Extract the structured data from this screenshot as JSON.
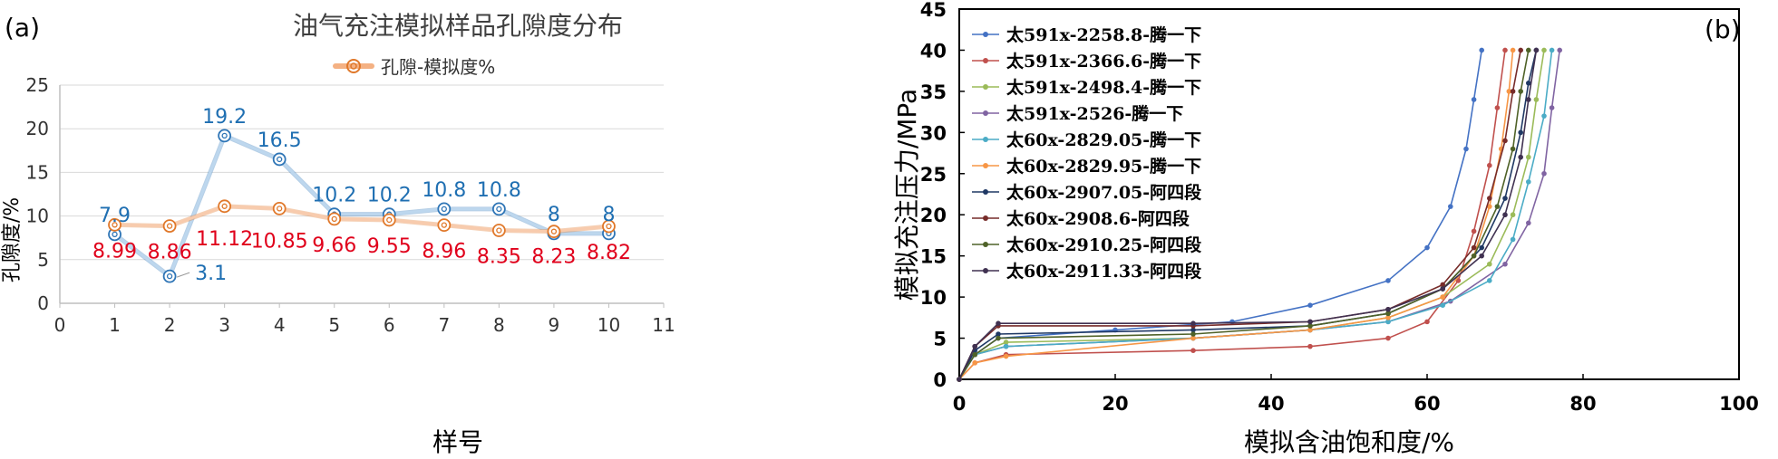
{
  "chart_data": [
    {
      "type": "line",
      "panel_label": "(a)",
      "title": "油气充注模拟样品孔隙度分布",
      "xlabel": "样号",
      "ylabel": "孔隙度/%",
      "xlim": [
        0,
        11
      ],
      "ylim": [
        0,
        25
      ],
      "xticks": [
        "0",
        "1",
        "2",
        "3",
        "4",
        "5",
        "6",
        "7",
        "8",
        "9",
        "10",
        "11"
      ],
      "yticks": [
        "0",
        "5",
        "10",
        "15",
        "20",
        "25"
      ],
      "grid": "horizontal",
      "legend_position": "top-center",
      "series": [
        {
          "name": "",
          "color": "#2e75b6",
          "x": [
            1,
            2,
            3,
            4,
            5,
            6,
            7,
            8,
            9,
            10
          ],
          "values": [
            7.9,
            3.1,
            19.2,
            16.5,
            10.2,
            10.2,
            10.8,
            10.8,
            8,
            8
          ],
          "labels": [
            "7.9",
            "3.1",
            "19.2",
            "16.5",
            "10.2",
            "10.2",
            "10.8",
            "10.8",
            "8",
            "8"
          ]
        },
        {
          "name": "孔隙-模拟度%",
          "color": "#e0782a",
          "x": [
            1,
            2,
            3,
            4,
            5,
            6,
            7,
            8,
            9,
            10
          ],
          "values": [
            8.99,
            8.86,
            11.12,
            10.85,
            9.66,
            9.55,
            8.96,
            8.35,
            8.23,
            8.82
          ],
          "labels": [
            "8.99",
            "8.86",
            "11.12",
            "10.85",
            "9.66",
            "9.55",
            "8.96",
            "8.35",
            "8.23",
            "8.82"
          ]
        }
      ]
    },
    {
      "type": "line",
      "panel_label": "(b)",
      "xlabel": "模拟含油饱和度/%",
      "ylabel": "模拟充注压力/MPa",
      "xlim": [
        0,
        100
      ],
      "ylim": [
        0,
        45
      ],
      "xticks": [
        "0",
        "20",
        "40",
        "60",
        "80",
        "100"
      ],
      "yticks": [
        "0",
        "5",
        "10",
        "15",
        "20",
        "25",
        "30",
        "35",
        "40",
        "45"
      ],
      "grid": "none",
      "legend_position": "top-left",
      "series": [
        {
          "name": "太591x-2258.8-腾一下",
          "color": "#4472c4",
          "plateau": 6.0,
          "end": 67,
          "points": [
            [
              0,
              0
            ],
            [
              2,
              3
            ],
            [
              5,
              5
            ],
            [
              20,
              6
            ],
            [
              35,
              7
            ],
            [
              45,
              9
            ],
            [
              55,
              12
            ],
            [
              60,
              16
            ],
            [
              63,
              21
            ],
            [
              65,
              28
            ],
            [
              66,
              34
            ],
            [
              67,
              40
            ]
          ]
        },
        {
          "name": "太591x-2366.6-腾一下",
          "color": "#c0504d",
          "plateau": 3.2,
          "end": 70,
          "points": [
            [
              0,
              0
            ],
            [
              2,
              2
            ],
            [
              6,
              3
            ],
            [
              30,
              3.5
            ],
            [
              45,
              4
            ],
            [
              55,
              5
            ],
            [
              60,
              7
            ],
            [
              64,
              12
            ],
            [
              66,
              18
            ],
            [
              68,
              26
            ],
            [
              69,
              33
            ],
            [
              70,
              40
            ]
          ]
        },
        {
          "name": "太591x-2498.4-腾一下",
          "color": "#9bbb59",
          "plateau": 4.5,
          "end": 75,
          "points": [
            [
              0,
              0
            ],
            [
              2,
              3
            ],
            [
              6,
              4.5
            ],
            [
              30,
              5
            ],
            [
              45,
              6
            ],
            [
              55,
              7.5
            ],
            [
              62,
              10
            ],
            [
              68,
              14
            ],
            [
              71,
              20
            ],
            [
              73,
              27
            ],
            [
              74,
              34
            ],
            [
              75,
              40
            ]
          ]
        },
        {
          "name": "太591x-2526-腾一下",
          "color": "#8064a2",
          "plateau": 4.0,
          "end": 77,
          "points": [
            [
              0,
              0
            ],
            [
              2,
              3
            ],
            [
              6,
              4
            ],
            [
              30,
              5
            ],
            [
              45,
              6
            ],
            [
              55,
              7
            ],
            [
              63,
              9.5
            ],
            [
              70,
              14
            ],
            [
              73,
              19
            ],
            [
              75,
              25
            ],
            [
              76,
              33
            ],
            [
              77,
              40
            ]
          ]
        },
        {
          "name": "太60x-2829.05-腾一下",
          "color": "#4bacc6",
          "plateau": 4.2,
          "end": 76,
          "points": [
            [
              0,
              0
            ],
            [
              2,
              3
            ],
            [
              6,
              4
            ],
            [
              30,
              5
            ],
            [
              45,
              6
            ],
            [
              55,
              7
            ],
            [
              62,
              9
            ],
            [
              68,
              12
            ],
            [
              71,
              17
            ],
            [
              73,
              24
            ],
            [
              75,
              32
            ],
            [
              76,
              40
            ]
          ]
        },
        {
          "name": "太60x-2829.95-腾一下",
          "color": "#f79646",
          "plateau": 2.8,
          "end": 71,
          "points": [
            [
              0,
              0
            ],
            [
              2,
              2
            ],
            [
              6,
              2.8
            ],
            [
              30,
              5
            ],
            [
              45,
              6
            ],
            [
              55,
              7.5
            ],
            [
              62,
              10
            ],
            [
              66,
              15
            ],
            [
              68,
              21
            ],
            [
              69.5,
              28
            ],
            [
              70.5,
              35
            ],
            [
              71,
              40
            ]
          ]
        },
        {
          "name": "太60x-2907.05-阿四段",
          "color": "#1f3864",
          "plateau": 6.0,
          "end": 74,
          "points": [
            [
              0,
              0
            ],
            [
              2,
              3.5
            ],
            [
              5,
              5.5
            ],
            [
              30,
              6
            ],
            [
              45,
              6.5
            ],
            [
              55,
              8
            ],
            [
              62,
              11
            ],
            [
              67,
              16
            ],
            [
              70,
              22
            ],
            [
              72,
              30
            ],
            [
              73,
              36
            ],
            [
              74,
              40
            ]
          ]
        },
        {
          "name": "太60x-2908.6-阿四段",
          "color": "#772c2a",
          "plateau": 6.5,
          "end": 72,
          "points": [
            [
              0,
              0
            ],
            [
              2,
              4
            ],
            [
              5,
              6.5
            ],
            [
              30,
              6.5
            ],
            [
              45,
              7
            ],
            [
              55,
              8.5
            ],
            [
              62,
              11.5
            ],
            [
              66,
              16
            ],
            [
              68,
              22
            ],
            [
              70,
              29
            ],
            [
              71,
              35
            ],
            [
              72,
              40
            ]
          ]
        },
        {
          "name": "太60x-2910.25-阿四段",
          "color": "#4f6228",
          "plateau": 5.0,
          "end": 73,
          "points": [
            [
              0,
              0
            ],
            [
              2,
              3
            ],
            [
              5,
              5
            ],
            [
              30,
              5.5
            ],
            [
              45,
              6.5
            ],
            [
              55,
              8
            ],
            [
              62,
              11
            ],
            [
              66,
              15
            ],
            [
              69,
              21
            ],
            [
              71,
              28
            ],
            [
              72,
              35
            ],
            [
              73,
              40
            ]
          ]
        },
        {
          "name": "太60x-2911.33-阿四段",
          "color": "#403151",
          "plateau": 6.8,
          "end": 74,
          "points": [
            [
              0,
              0
            ],
            [
              2,
              4
            ],
            [
              5,
              6.8
            ],
            [
              30,
              6.8
            ],
            [
              45,
              7
            ],
            [
              55,
              8.5
            ],
            [
              62,
              11
            ],
            [
              67,
              15
            ],
            [
              70,
              20
            ],
            [
              72,
              27
            ],
            [
              73,
              34
            ],
            [
              74,
              40
            ]
          ]
        }
      ]
    }
  ]
}
